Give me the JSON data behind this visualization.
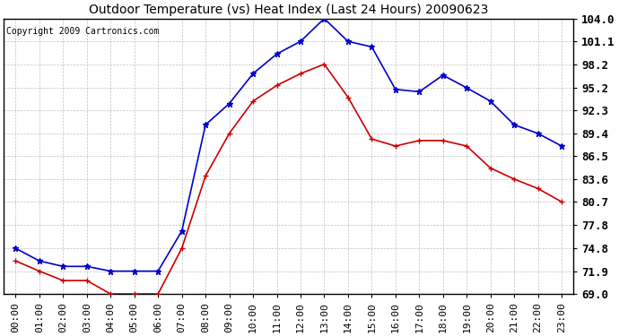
{
  "title": "Outdoor Temperature (vs) Heat Index (Last 24 Hours) 20090623",
  "copyright": "Copyright 2009 Cartronics.com",
  "hours": [
    "00:00",
    "01:00",
    "02:00",
    "03:00",
    "04:00",
    "05:00",
    "06:00",
    "07:00",
    "08:00",
    "09:00",
    "10:00",
    "11:00",
    "12:00",
    "13:00",
    "14:00",
    "15:00",
    "16:00",
    "17:00",
    "18:00",
    "19:00",
    "20:00",
    "21:00",
    "22:00",
    "23:00"
  ],
  "blue_data": [
    74.8,
    73.2,
    72.5,
    72.5,
    71.9,
    71.9,
    71.9,
    77.0,
    90.5,
    93.2,
    97.0,
    99.5,
    101.1,
    104.0,
    101.1,
    100.4,
    95.0,
    94.7,
    96.8,
    95.2,
    93.5,
    90.5,
    89.4,
    87.8
  ],
  "red_data": [
    73.2,
    71.9,
    70.7,
    70.7,
    69.0,
    69.0,
    69.0,
    74.8,
    84.0,
    89.4,
    93.5,
    95.5,
    97.0,
    98.2,
    94.0,
    88.7,
    87.8,
    88.5,
    88.5,
    87.8,
    85.0,
    83.6,
    82.4,
    80.7
  ],
  "ylim": [
    69.0,
    104.0
  ],
  "yticks": [
    69.0,
    71.9,
    74.8,
    77.8,
    80.7,
    83.6,
    86.5,
    89.4,
    92.3,
    95.2,
    98.2,
    101.1,
    104.0
  ],
  "blue_color": "#0000cc",
  "red_color": "#cc0000",
  "bg_color": "#ffffff",
  "plot_bg": "#ffffff",
  "grid_color": "#c0c0c0",
  "title_color": "#000000",
  "copyright_color": "#000000",
  "title_fontsize": 10,
  "copyright_fontsize": 7,
  "tick_fontsize": 8,
  "ytick_fontsize": 9
}
